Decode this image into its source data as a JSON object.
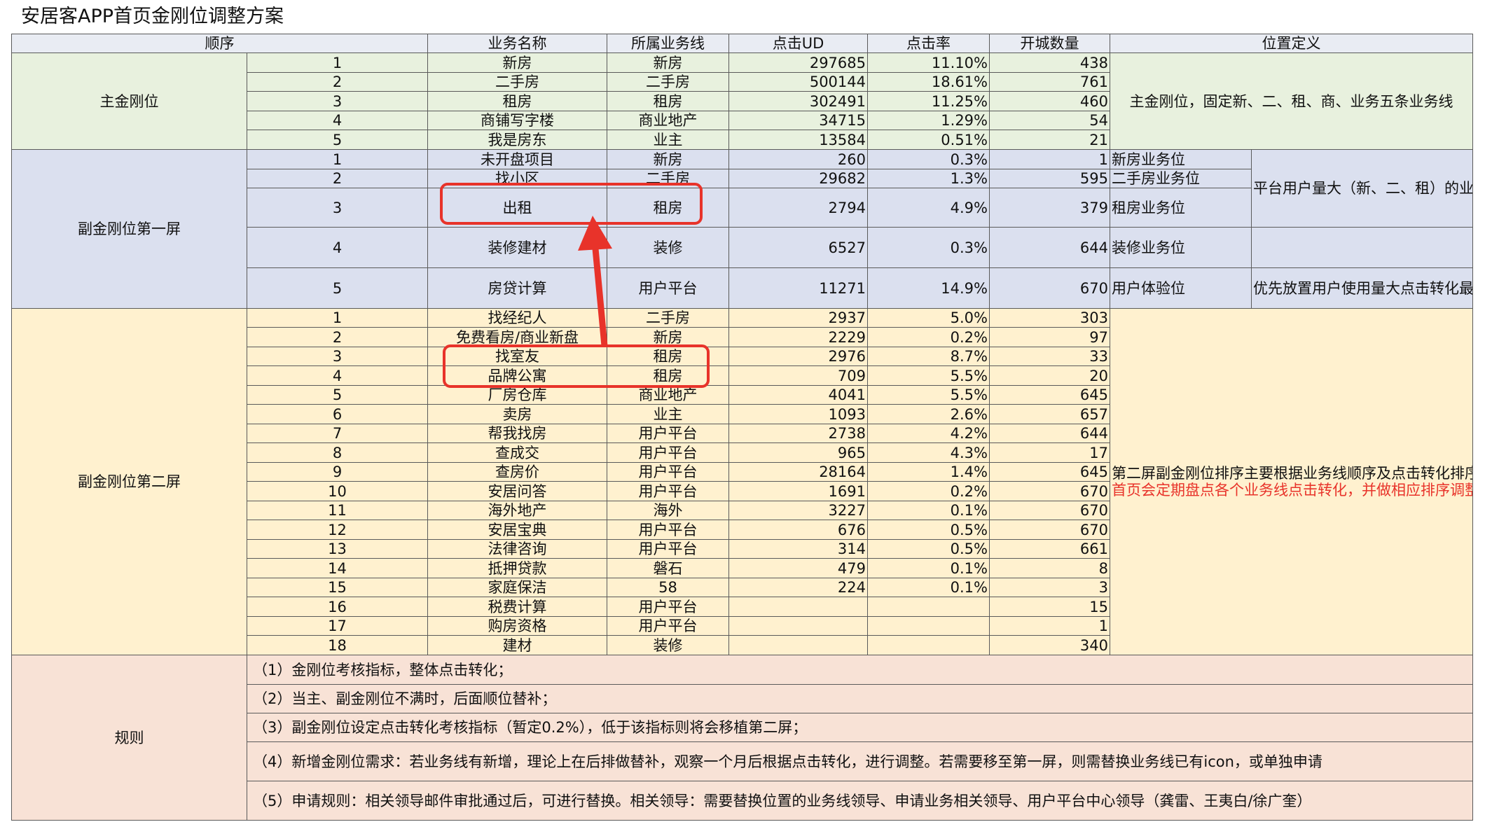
{
  "title": "安居客APP首页金刚位调整方案",
  "headers": [
    "顺序",
    "业务名称",
    "所属业务线",
    "点击UD",
    "点击率",
    "开城数量",
    "位置定义"
  ],
  "groups": {
    "main": {
      "label": "主金刚位",
      "definition": "主金刚位，固定新、二、租、商、业务五条业务线",
      "rows": [
        {
          "order": "1",
          "name": "新房",
          "line": "新房",
          "ud": "297685",
          "ctr": "11.10%",
          "cities": "438"
        },
        {
          "order": "2",
          "name": "二手房",
          "line": "二手房",
          "ud": "500144",
          "ctr": "18.61%",
          "cities": "761"
        },
        {
          "order": "3",
          "name": "租房",
          "line": "租房",
          "ud": "302491",
          "ctr": "11.25%",
          "cities": "460"
        },
        {
          "order": "4",
          "name": "商铺写字楼",
          "line": "商业地产",
          "ud": "34715",
          "ctr": "1.29%",
          "cities": "54"
        },
        {
          "order": "5",
          "name": "我是房东",
          "line": "业主",
          "ud": "13584",
          "ctr": "0.51%",
          "cities": "21"
        }
      ]
    },
    "sub1": {
      "label": "副金刚位第一屏",
      "note1": "平台用户量大（新、二、租）的业务线提供较好的曝光入口，各业务线可在目前已有icon中挑选",
      "note2": "优先放置用户使用量大点击转化最好的功能",
      "rows": [
        {
          "order": "1",
          "name": "未开盘项目",
          "line": "新房",
          "ud": "260",
          "ctr": "0.3%",
          "cities": "1",
          "pos": "新房业务位"
        },
        {
          "order": "2",
          "name": "找小区",
          "line": "二手房",
          "ud": "29682",
          "ctr": "1.3%",
          "cities": "595",
          "pos": "二手房业务位"
        },
        {
          "order": "3",
          "name": "出租",
          "line": "租房",
          "ud": "2794",
          "ctr": "4.9%",
          "cities": "379",
          "pos": "租房业务位"
        },
        {
          "order": "4",
          "name": "装修建材",
          "line": "装修",
          "ud": "6527",
          "ctr": "0.3%",
          "cities": "644",
          "pos": "装修业务位"
        },
        {
          "order": "5",
          "name": "房贷计算",
          "line": "用户平台",
          "ud": "11271",
          "ctr": "14.9%",
          "cities": "670",
          "pos": "用户体验位"
        }
      ]
    },
    "sub2": {
      "label": "副金刚位第二屏",
      "definition": "第二屏副金刚位排序主要根据业务线顺序及点击转化排序。",
      "definition_red": "首页会定期盘点各个业务线点击转化，并做相应排序调整。",
      "rows": [
        {
          "order": "1",
          "name": "找经纪人",
          "line": "二手房",
          "ud": "2937",
          "ctr": "5.0%",
          "cities": "303"
        },
        {
          "order": "2",
          "name": "免费看房/商业新盘",
          "line": "新房",
          "ud": "2229",
          "ctr": "0.2%",
          "cities": "97"
        },
        {
          "order": "3",
          "name": "找室友",
          "line": "租房",
          "ud": "2976",
          "ctr": "8.7%",
          "cities": "33"
        },
        {
          "order": "4",
          "name": "品牌公寓",
          "line": "租房",
          "ud": "709",
          "ctr": "5.5%",
          "cities": "20"
        },
        {
          "order": "5",
          "name": "厂房仓库",
          "line": "商业地产",
          "ud": "4041",
          "ctr": "5.5%",
          "cities": "645"
        },
        {
          "order": "6",
          "name": "卖房",
          "line": "业主",
          "ud": "1093",
          "ctr": "2.6%",
          "cities": "657"
        },
        {
          "order": "7",
          "name": "帮我找房",
          "line": "用户平台",
          "ud": "2738",
          "ctr": "4.2%",
          "cities": "644"
        },
        {
          "order": "8",
          "name": "查成交",
          "line": "用户平台",
          "ud": "965",
          "ctr": "4.3%",
          "cities": "17"
        },
        {
          "order": "9",
          "name": "查房价",
          "line": "用户平台",
          "ud": "28164",
          "ctr": "1.4%",
          "cities": "645"
        },
        {
          "order": "10",
          "name": "安居问答",
          "line": "用户平台",
          "ud": "1691",
          "ctr": "0.2%",
          "cities": "670"
        },
        {
          "order": "11",
          "name": "海外地产",
          "line": "海外",
          "ud": "3227",
          "ctr": "0.1%",
          "cities": "670"
        },
        {
          "order": "12",
          "name": "安居宝典",
          "line": "用户平台",
          "ud": "676",
          "ctr": "0.5%",
          "cities": "670"
        },
        {
          "order": "13",
          "name": "法律咨询",
          "line": "用户平台",
          "ud": "314",
          "ctr": "0.5%",
          "cities": "661"
        },
        {
          "order": "14",
          "name": "抵押贷款",
          "line": "磐石",
          "ud": "479",
          "ctr": "0.1%",
          "cities": "8"
        },
        {
          "order": "15",
          "name": "家庭保洁",
          "line": "58",
          "ud": "224",
          "ctr": "0.1%",
          "cities": "3"
        },
        {
          "order": "16",
          "name": "税费计算",
          "line": "用户平台",
          "ud": "",
          "ctr": "",
          "cities": "15"
        },
        {
          "order": "17",
          "name": "购房资格",
          "line": "用户平台",
          "ud": "",
          "ctr": "",
          "cities": "1"
        },
        {
          "order": "18",
          "name": "建材",
          "line": "装修",
          "ud": "",
          "ctr": "",
          "cities": "340"
        }
      ]
    },
    "rules": {
      "label": "规则",
      "items": [
        "（1）金刚位考核指标，整体点击转化；",
        "（2）当主、副金刚位不满时，后面顺位替补；",
        "（3）副金刚位设定点击转化考核指标（暂定0.2%），低于该指标则将会移植第二屏；",
        "（4）新增金刚位需求：若业务线有新增，理论上在后排做替补，观察一个月后根据点击转化，进行调整。若需要移至第一屏，则需替换业务线已有icon，或单独申请",
        "（5）申请规则：相关领导邮件审批通过后，可进行替换。相关领导：需要替换位置的业务线领导、申请业务相关领导、用户平台中心领导（龚雷、王夷白/徐广奎）"
      ]
    }
  },
  "annotation_color": "#e8332a"
}
